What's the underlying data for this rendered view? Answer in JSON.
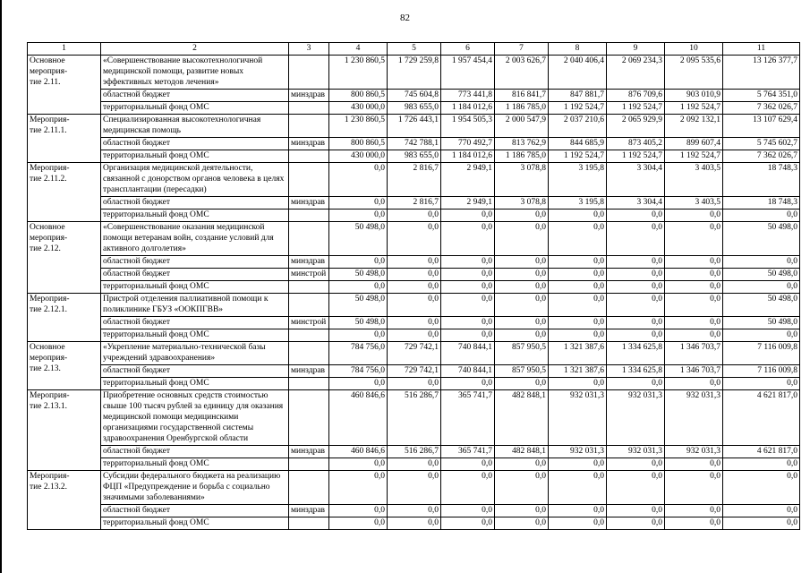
{
  "page_number": "82",
  "table": {
    "headers": [
      "1",
      "2",
      "3",
      "4",
      "5",
      "6",
      "7",
      "8",
      "9",
      "10",
      "11"
    ],
    "groups": [
      {
        "label": "Основное\nмероприя-\nтие 2.11.",
        "rows": [
          {
            "desc": "«Совершенствование высокотехнологичной медицинской помощи, развитие новых эффективных методов лечения»",
            "exec": "",
            "values": [
              "1 230 860,5",
              "1 729 259,8",
              "1 957 454,4",
              "2 003 626,7",
              "2 040 406,4",
              "2 069 234,3",
              "2 095 535,6",
              "13 126 377,7"
            ]
          },
          {
            "desc": "областной бюджет",
            "exec": "минздрав",
            "values": [
              "800 860,5",
              "745 604,8",
              "773 441,8",
              "816 841,7",
              "847 881,7",
              "876 709,6",
              "903 010,9",
              "5 764 351,0"
            ]
          },
          {
            "desc": "территориальный фонд ОМС",
            "exec": "",
            "values": [
              "430 000,0",
              "983 655,0",
              "1 184 012,6",
              "1 186 785,0",
              "1 192 524,7",
              "1 192 524,7",
              "1 192 524,7",
              "7 362 026,7"
            ]
          }
        ]
      },
      {
        "label": "Мероприя-\nтие 2.11.1.",
        "rows": [
          {
            "desc": "Специализированная высокотехнологичная медицинская помощь",
            "exec": "",
            "values": [
              "1 230 860,5",
              "1 726 443,1",
              "1 954 505,3",
              "2 000 547,9",
              "2 037 210,6",
              "2 065 929,9",
              "2 092 132,1",
              "13 107 629,4"
            ]
          },
          {
            "desc": "областной бюджет",
            "exec": "минздрав",
            "values": [
              "800 860,5",
              "742 788,1",
              "770 492,7",
              "813 762,9",
              "844 685,9",
              "873 405,2",
              "899 607,4",
              "5 745 602,7"
            ]
          },
          {
            "desc": "территориальный фонд ОМС",
            "exec": "",
            "values": [
              "430 000,0",
              "983 655,0",
              "1 184 012,6",
              "1 186 785,0",
              "1 192 524,7",
              "1 192 524,7",
              "1 192 524,7",
              "7 362 026,7"
            ]
          }
        ]
      },
      {
        "label": "Мероприя-\nтие 2.11.2.",
        "rows": [
          {
            "desc": "Организация медицинской деятельности, связанной с донорством органов человека в целях трансплантации (пересадки)",
            "exec": "",
            "values": [
              "0,0",
              "2 816,7",
              "2 949,1",
              "3 078,8",
              "3 195,8",
              "3 304,4",
              "3 403,5",
              "18 748,3"
            ]
          },
          {
            "desc": "областной бюджет",
            "exec": "минздрав",
            "values": [
              "0,0",
              "2 816,7",
              "2 949,1",
              "3 078,8",
              "3 195,8",
              "3 304,4",
              "3 403,5",
              "18 748,3"
            ]
          },
          {
            "desc": "территориальный фонд ОМС",
            "exec": "",
            "values": [
              "0,0",
              "0,0",
              "0,0",
              "0,0",
              "0,0",
              "0,0",
              "0,0",
              "0,0"
            ]
          }
        ]
      },
      {
        "label": "Основное\nмероприя-\nтие 2.12.",
        "rows": [
          {
            "desc": "«Совершенствование оказания медицинской помощи ветеранам войн, создание условий для активного долголетия»",
            "exec": "",
            "values": [
              "50 498,0",
              "0,0",
              "0,0",
              "0,0",
              "0,0",
              "0,0",
              "0,0",
              "50 498,0"
            ]
          },
          {
            "desc": "областной бюджет",
            "exec": "минздрав",
            "values": [
              "0,0",
              "0,0",
              "0,0",
              "0,0",
              "0,0",
              "0,0",
              "0,0",
              "0,0"
            ]
          },
          {
            "desc": "областной бюджет",
            "exec": "минстрой",
            "values": [
              "50 498,0",
              "0,0",
              "0,0",
              "0,0",
              "0,0",
              "0,0",
              "0,0",
              "50 498,0"
            ]
          },
          {
            "desc": "территориальный фонд ОМС",
            "exec": "",
            "values": [
              "0,0",
              "0,0",
              "0,0",
              "0,0",
              "0,0",
              "0,0",
              "0,0",
              "0,0"
            ]
          }
        ]
      },
      {
        "label": "Мероприя-\nтие 2.12.1.",
        "rows": [
          {
            "desc": "Пристрой отделения паллиативной помощи к поликлинике ГБУЗ «ООКПГВВ»",
            "exec": "",
            "values": [
              "50 498,0",
              "0,0",
              "0,0",
              "0,0",
              "0,0",
              "0,0",
              "0,0",
              "50 498,0"
            ]
          },
          {
            "desc": "областной бюджет",
            "exec": "минстрой",
            "values": [
              "50 498,0",
              "0,0",
              "0,0",
              "0,0",
              "0,0",
              "0,0",
              "0,0",
              "50 498,0"
            ]
          },
          {
            "desc": "территориальный фонд ОМС",
            "exec": "",
            "values": [
              "0,0",
              "0,0",
              "0,0",
              "0,0",
              "0,0",
              "0,0",
              "0,0",
              "0,0"
            ]
          }
        ]
      },
      {
        "label": "Основное\nмероприя-\nтие 2.13.",
        "rows": [
          {
            "desc": "«Укрепление материально-технической базы учреждений здравоохранения»",
            "exec": "",
            "values": [
              "784 756,0",
              "729 742,1",
              "740 844,1",
              "857 950,5",
              "1 321 387,6",
              "1 334 625,8",
              "1 346 703,7",
              "7 116 009,8"
            ]
          },
          {
            "desc": "областной бюджет",
            "exec": "минздрав",
            "values": [
              "784 756,0",
              "729 742,1",
              "740 844,1",
              "857 950,5",
              "1 321 387,6",
              "1 334 625,8",
              "1 346 703,7",
              "7 116 009,8"
            ]
          },
          {
            "desc": "территориальный фонд ОМС",
            "exec": "",
            "values": [
              "0,0",
              "0,0",
              "0,0",
              "0,0",
              "0,0",
              "0,0",
              "0,0",
              "0,0"
            ]
          }
        ]
      },
      {
        "label": "Мероприя-\nтие 2.13.1.",
        "rows": [
          {
            "desc": "Приобретение основных средств стоимостью свыше 100 тысяч рублей за единицу для оказания медицинской помощи медицинскими организациями государственной системы здравоохранения Оренбургской области",
            "exec": "",
            "values": [
              "460 846,6",
              "516 286,7",
              "365 741,7",
              "482 848,1",
              "932 031,3",
              "932 031,3",
              "932 031,3",
              "4 621 817,0"
            ]
          },
          {
            "desc": "областной бюджет",
            "exec": "минздрав",
            "values": [
              "460 846,6",
              "516 286,7",
              "365 741,7",
              "482 848,1",
              "932 031,3",
              "932 031,3",
              "932 031,3",
              "4 621 817,0"
            ]
          },
          {
            "desc": "территориальный фонд ОМС",
            "exec": "",
            "values": [
              "0,0",
              "0,0",
              "0,0",
              "0,0",
              "0,0",
              "0,0",
              "0,0",
              "0,0"
            ]
          }
        ]
      },
      {
        "label": "Мероприя-\nтие 2.13.2.",
        "rows": [
          {
            "desc": "Субсидии федерального бюджета на реализацию ФЦП «Предупреждение и борьба с социально значимыми заболеваниями»",
            "exec": "",
            "values": [
              "0,0",
              "0,0",
              "0,0",
              "0,0",
              "0,0",
              "0,0",
              "0,0",
              "0,0"
            ]
          },
          {
            "desc": "областной бюджет",
            "exec": "минздрав",
            "values": [
              "0,0",
              "0,0",
              "0,0",
              "0,0",
              "0,0",
              "0,0",
              "0,0",
              "0,0"
            ]
          },
          {
            "desc": "территориальный фонд ОМС",
            "exec": "",
            "values": [
              "0,0",
              "0,0",
              "0,0",
              "0,0",
              "0,0",
              "0,0",
              "0,0",
              "0,0"
            ]
          }
        ]
      }
    ]
  }
}
